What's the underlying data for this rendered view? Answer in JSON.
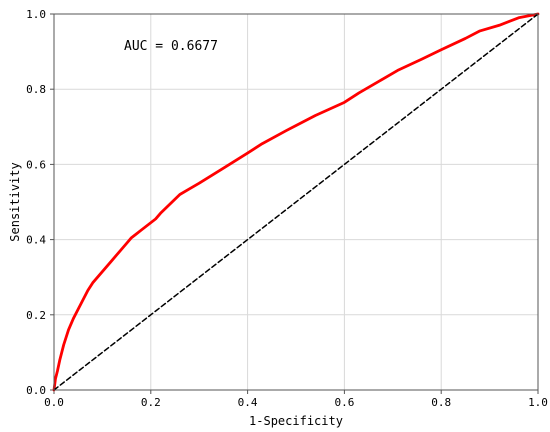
{
  "chart_data": {
    "type": "line",
    "title": "",
    "xlabel": "1-Specificity",
    "ylabel": "Sensitivity",
    "xlim": [
      0,
      1
    ],
    "ylim": [
      0,
      1
    ],
    "grid": true,
    "annotation": "AUC = 0.6677",
    "x_ticks": [
      {
        "value": 0.0,
        "label": "0.0"
      },
      {
        "value": 0.2,
        "label": "0.2"
      },
      {
        "value": 0.4,
        "label": "0.4"
      },
      {
        "value": 0.6,
        "label": "0.6"
      },
      {
        "value": 0.8,
        "label": "0.8"
      },
      {
        "value": 1.0,
        "label": "1.0"
      }
    ],
    "y_ticks": [
      {
        "value": 0.0,
        "label": "0.0"
      },
      {
        "value": 0.2,
        "label": "0.2"
      },
      {
        "value": 0.4,
        "label": "0.4"
      },
      {
        "value": 0.6,
        "label": "0.6"
      },
      {
        "value": 0.8,
        "label": "0.8"
      },
      {
        "value": 1.0,
        "label": "1.0"
      }
    ],
    "series": [
      {
        "color": "#ff0000",
        "style": "solid",
        "x": [
          0.0,
          0.003,
          0.007,
          0.012,
          0.02,
          0.03,
          0.04,
          0.05,
          0.06,
          0.07,
          0.08,
          0.09,
          0.1,
          0.11,
          0.12,
          0.13,
          0.14,
          0.15,
          0.16,
          0.17,
          0.18,
          0.19,
          0.2,
          0.21,
          0.22,
          0.24,
          0.26,
          0.28,
          0.3,
          0.35,
          0.4,
          0.43,
          0.48,
          0.54,
          0.6,
          0.63,
          0.67,
          0.71,
          0.76,
          0.8,
          0.85,
          0.88,
          0.92,
          0.96,
          1.0
        ],
        "y": [
          0.0,
          0.03,
          0.05,
          0.08,
          0.12,
          0.16,
          0.19,
          0.215,
          0.24,
          0.265,
          0.285,
          0.3,
          0.315,
          0.33,
          0.345,
          0.36,
          0.375,
          0.39,
          0.405,
          0.415,
          0.425,
          0.435,
          0.445,
          0.455,
          0.47,
          0.495,
          0.52,
          0.535,
          0.55,
          0.59,
          0.63,
          0.655,
          0.69,
          0.73,
          0.765,
          0.79,
          0.82,
          0.85,
          0.88,
          0.905,
          0.935,
          0.955,
          0.97,
          0.99,
          1.0
        ]
      },
      {
        "color": "#000000",
        "style": "dashed",
        "x": [
          0,
          1
        ],
        "y": [
          0,
          1
        ]
      }
    ]
  }
}
